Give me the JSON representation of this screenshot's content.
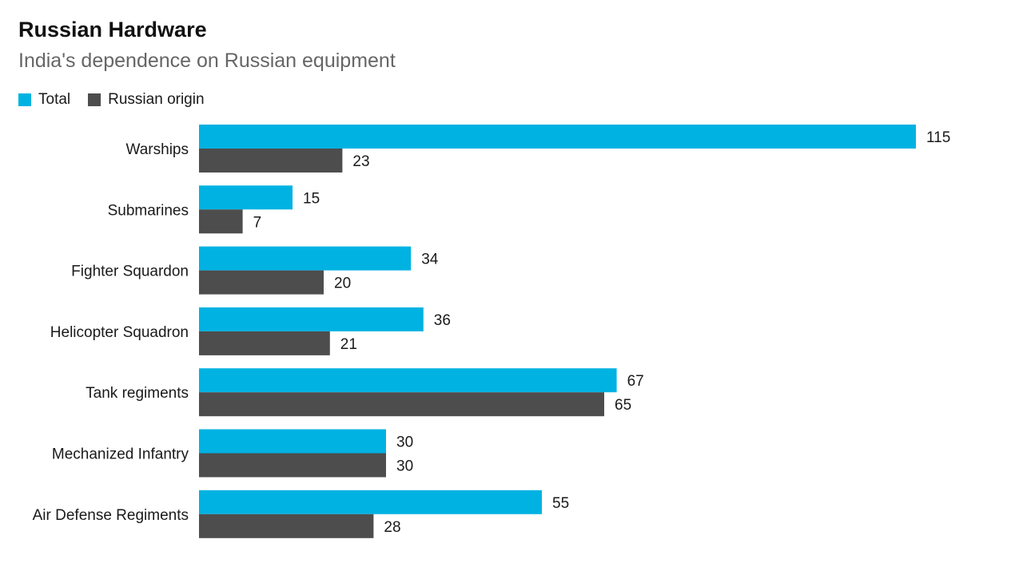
{
  "chart_data": {
    "type": "bar",
    "orientation": "horizontal",
    "title": "Russian Hardware",
    "subtitle": "India's dependence on Russian equipment",
    "categories": [
      "Warships",
      "Submarines",
      "Fighter Squardon",
      "Helicopter Squadron",
      "Tank regiments",
      "Mechanized Infantry",
      "Air Defense Regiments"
    ],
    "series": [
      {
        "name": "Total",
        "color": "#00b2e2",
        "values": [
          115,
          15,
          34,
          36,
          67,
          30,
          55
        ]
      },
      {
        "name": "Russian origin",
        "color": "#4d4d4d",
        "values": [
          23,
          7,
          20,
          21,
          65,
          30,
          28
        ]
      }
    ],
    "xlim": [
      0,
      115
    ],
    "grid": false,
    "legend_position": "top-left",
    "data_labels": true
  }
}
